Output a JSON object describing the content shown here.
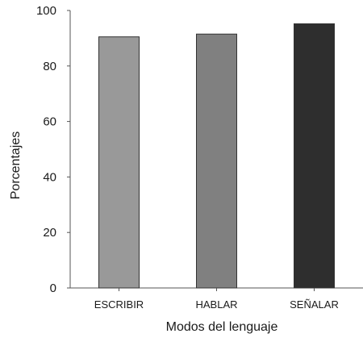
{
  "chart_data": {
    "type": "bar",
    "categories": [
      "ESCRIBIR",
      "HABLAR",
      "SEÑALAR"
    ],
    "values": [
      90.5,
      91.5,
      95.2
    ],
    "bar_colors": [
      "#999999",
      "#808080",
      "#2e2e2e"
    ],
    "xlabel": "Modos del lenguaje",
    "ylabel": "Porcentajes",
    "ylim": [
      0,
      100
    ],
    "yticks": [
      "0",
      "20",
      "40",
      "60",
      "80",
      "100"
    ],
    "grid": false,
    "legend": "none"
  }
}
